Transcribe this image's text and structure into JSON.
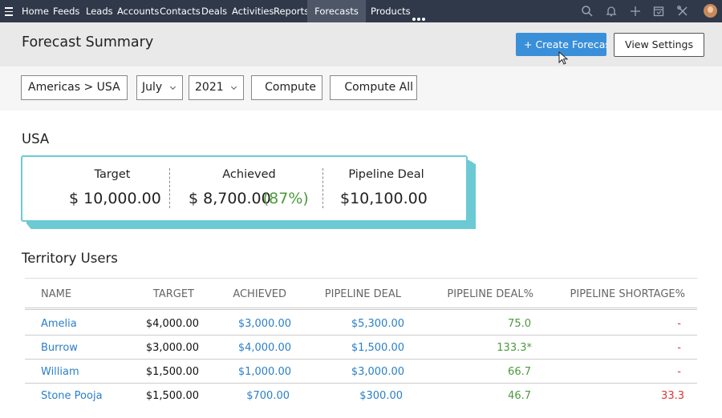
{
  "nav": {
    "items": [
      {
        "label": "Home"
      },
      {
        "label": "Feeds"
      },
      {
        "label": "Leads"
      },
      {
        "label": "Accounts"
      },
      {
        "label": "Contacts"
      },
      {
        "label": "Deals"
      },
      {
        "label": "Activities"
      },
      {
        "label": "Reports"
      },
      {
        "label": "Forecasts"
      },
      {
        "label": "Products"
      }
    ],
    "active": "Forecasts",
    "right_icons": [
      "search-icon",
      "bell-icon",
      "plus-icon",
      "calendar-icon",
      "tools-icon",
      "avatar"
    ],
    "colors": {
      "bar": "#30394a",
      "active": "#4e5768"
    }
  },
  "header": {
    "title": "Forecast Summary",
    "create_button": "+ Create Forecast",
    "view_settings_button": "View Settings"
  },
  "filters": {
    "territory": "Americas > USA",
    "month": "July",
    "year": "2021",
    "compute_button": "Compute",
    "compute_all_button": "Compute All"
  },
  "territory": {
    "name": "USA",
    "target_label": "Target",
    "target_value": "$ 10,000.00",
    "achieved_label": "Achieved",
    "achieved_value": "$ 8,700.00",
    "achieved_pct": "(87%)",
    "pipeline_label": "Pipeline Deal",
    "pipeline_value": "$10,100.00"
  },
  "users": {
    "title": "Territory Users",
    "columns": [
      "NAME",
      "TARGET",
      "ACHIEVED",
      "PIPELINE DEAL",
      "PIPELINE DEAL%",
      "PIPELINE SHORTAGE%"
    ],
    "rows": [
      {
        "name": "Amelia",
        "target": "$4,000.00",
        "achieved": "$3,000.00",
        "pipeline": "$5,300.00",
        "pipeline_pct": "75.0",
        "shortage": "-"
      },
      {
        "name": "Burrow",
        "target": "$3,000.00",
        "achieved": "$4,000.00",
        "pipeline": "$1,500.00",
        "pipeline_pct": "133.3*",
        "shortage": "-"
      },
      {
        "name": "William",
        "target": "$1,500.00",
        "achieved": "$1,000.00",
        "pipeline": "$3,000.00",
        "pipeline_pct": "66.7",
        "shortage": "-"
      },
      {
        "name": "Stone Pooja",
        "target": "$1,500.00",
        "achieved": "$700.00",
        "pipeline": "$300.00",
        "pipeline_pct": "46.7",
        "shortage": "33.3"
      }
    ]
  },
  "colors": {
    "accent": "#3a8fd9",
    "link": "#2a7fc9",
    "positive": "#4a9a3a",
    "negative": "#dd3333",
    "card_border": "#6ccad4"
  }
}
